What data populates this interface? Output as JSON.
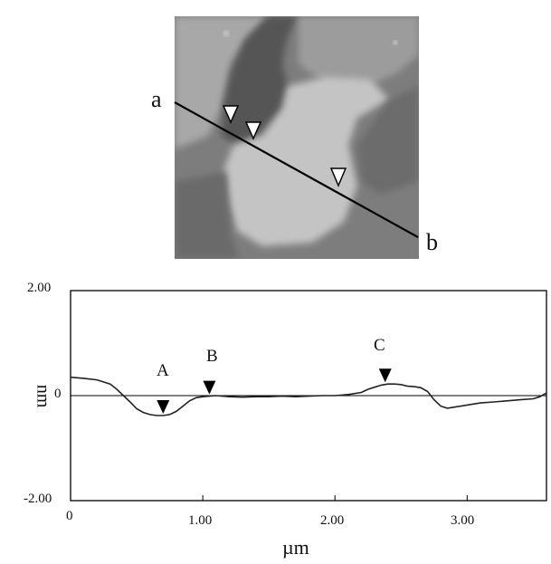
{
  "figure": {
    "afm_image": {
      "line_start_label": "a",
      "line_end_label": "b",
      "marker_count": 3
    },
    "profile": {
      "marker_labels": [
        "A",
        "B",
        "C"
      ]
    }
  },
  "chart_data": {
    "type": "line",
    "title": "",
    "xlabel": "µm",
    "ylabel": "nm",
    "xlim": [
      0,
      3.6
    ],
    "ylim": [
      -2.0,
      2.0
    ],
    "x_ticks": [
      "0",
      "1.00",
      "2.00",
      "3.00"
    ],
    "y_ticks": [
      "2.00",
      "0",
      "-2.00"
    ],
    "grid": false,
    "series": [
      {
        "x": [
          0,
          0.1,
          0.2,
          0.3,
          0.35,
          0.4,
          0.45,
          0.5,
          0.55,
          0.6,
          0.65,
          0.7,
          0.75,
          0.8,
          0.85,
          0.9,
          0.95,
          1.0,
          1.05,
          1.1,
          1.2,
          1.3,
          1.4,
          1.5,
          1.6,
          1.7,
          1.8,
          1.9,
          2.0,
          2.1,
          2.2,
          2.25,
          2.3,
          2.35,
          2.4,
          2.45,
          2.5,
          2.55,
          2.6,
          2.65,
          2.7,
          2.75,
          2.8,
          2.85,
          2.9,
          3.0,
          3.1,
          3.2,
          3.3,
          3.4,
          3.5,
          3.55,
          3.6
        ],
        "y": [
          0.35,
          0.33,
          0.3,
          0.22,
          0.12,
          0.0,
          -0.12,
          -0.25,
          -0.32,
          -0.36,
          -0.38,
          -0.38,
          -0.36,
          -0.3,
          -0.2,
          -0.1,
          -0.04,
          -0.02,
          -0.01,
          0.0,
          -0.02,
          -0.03,
          -0.02,
          -0.02,
          -0.01,
          -0.02,
          -0.01,
          0.0,
          0.0,
          0.02,
          0.06,
          0.12,
          0.16,
          0.2,
          0.22,
          0.22,
          0.21,
          0.18,
          0.17,
          0.15,
          0.08,
          -0.08,
          -0.2,
          -0.24,
          -0.22,
          -0.18,
          -0.14,
          -0.12,
          -0.1,
          -0.08,
          -0.06,
          -0.02,
          0.05
        ]
      }
    ],
    "markers": [
      {
        "label": "A",
        "x": 0.7,
        "y": -0.38
      },
      {
        "label": "B",
        "x": 1.05,
        "y": -0.01
      },
      {
        "label": "C",
        "x": 2.38,
        "y": 0.22
      }
    ]
  }
}
